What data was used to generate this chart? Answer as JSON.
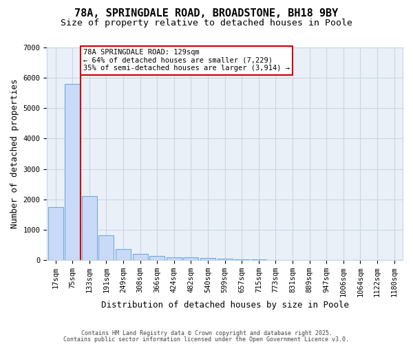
{
  "title1": "78A, SPRINGDALE ROAD, BROADSTONE, BH18 9BY",
  "title2": "Size of property relative to detached houses in Poole",
  "xlabel": "Distribution of detached houses by size in Poole",
  "ylabel": "Number of detached properties",
  "categories": [
    "17sqm",
    "75sqm",
    "133sqm",
    "191sqm",
    "249sqm",
    "308sqm",
    "366sqm",
    "424sqm",
    "482sqm",
    "540sqm",
    "599sqm",
    "657sqm",
    "715sqm",
    "773sqm",
    "831sqm",
    "889sqm",
    "947sqm",
    "1006sqm",
    "1064sqm",
    "1122sqm",
    "1180sqm"
  ],
  "bar_values": [
    1750,
    5800,
    2100,
    820,
    360,
    210,
    130,
    90,
    80,
    60,
    40,
    30,
    20,
    10,
    5,
    4,
    3,
    3,
    2,
    2,
    0
  ],
  "bar_color": "#c9daf8",
  "bar_edge_color": "#6fa8dc",
  "vline_color": "#cc0000",
  "vline_position": 1.5,
  "annotation_line1": "78A SPRINGDALE ROAD: 129sqm",
  "annotation_line2": "← 64% of detached houses are smaller (7,229)",
  "annotation_line3": "35% of semi-detached houses are larger (3,914) →",
  "annotation_box_color": "#cc0000",
  "annotation_bg": "#ffffff",
  "ylim": [
    0,
    7000
  ],
  "grid_color": "#c9d6e3",
  "bg_color": "#eaf0f7",
  "footer1": "Contains HM Land Registry data © Crown copyright and database right 2025.",
  "footer2": "Contains public sector information licensed under the Open Government Licence v3.0.",
  "title_fontsize": 11,
  "axis_label_fontsize": 9,
  "tick_fontsize": 7.5
}
